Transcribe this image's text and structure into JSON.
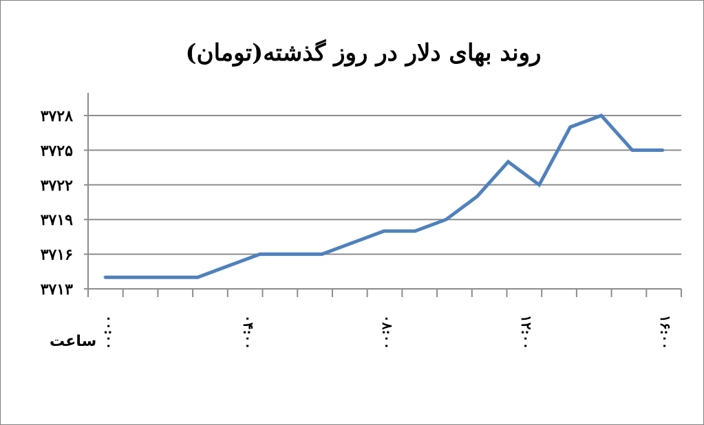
{
  "chart_data": {
    "type": "line",
    "title": "روند بهای دلار در روز گذشته(تومان)",
    "xlabel": "ساعت",
    "ylabel": "",
    "ylim": [
      3713,
      3728
    ],
    "yticks": [
      3713,
      3716,
      3719,
      3722,
      3725,
      3728
    ],
    "ytick_labels": [
      "۳۷۱۳",
      "۳۷۱۶",
      "۳۷۱۹",
      "۳۷۲۲",
      "۳۷۲۵",
      "۳۷۲۸"
    ],
    "x_tick_labels": [
      "۰۰:۰۰",
      "۰۴:۰۰",
      "۰۸:۰۰",
      "۱۲:۰۰",
      "۱۶:۰۰"
    ],
    "grid": true,
    "series": [
      {
        "color": "#4f81bd",
        "values": [
          3714.0,
          3714.0,
          3714.0,
          3714.0,
          3715.0,
          3716.0,
          3716.0,
          3716.0,
          3717.0,
          3718.0,
          3718.0,
          3719.0,
          3721.0,
          3724.0,
          3722.0,
          3727.0,
          3728.0,
          3725.0,
          3725.0
        ]
      }
    ]
  }
}
